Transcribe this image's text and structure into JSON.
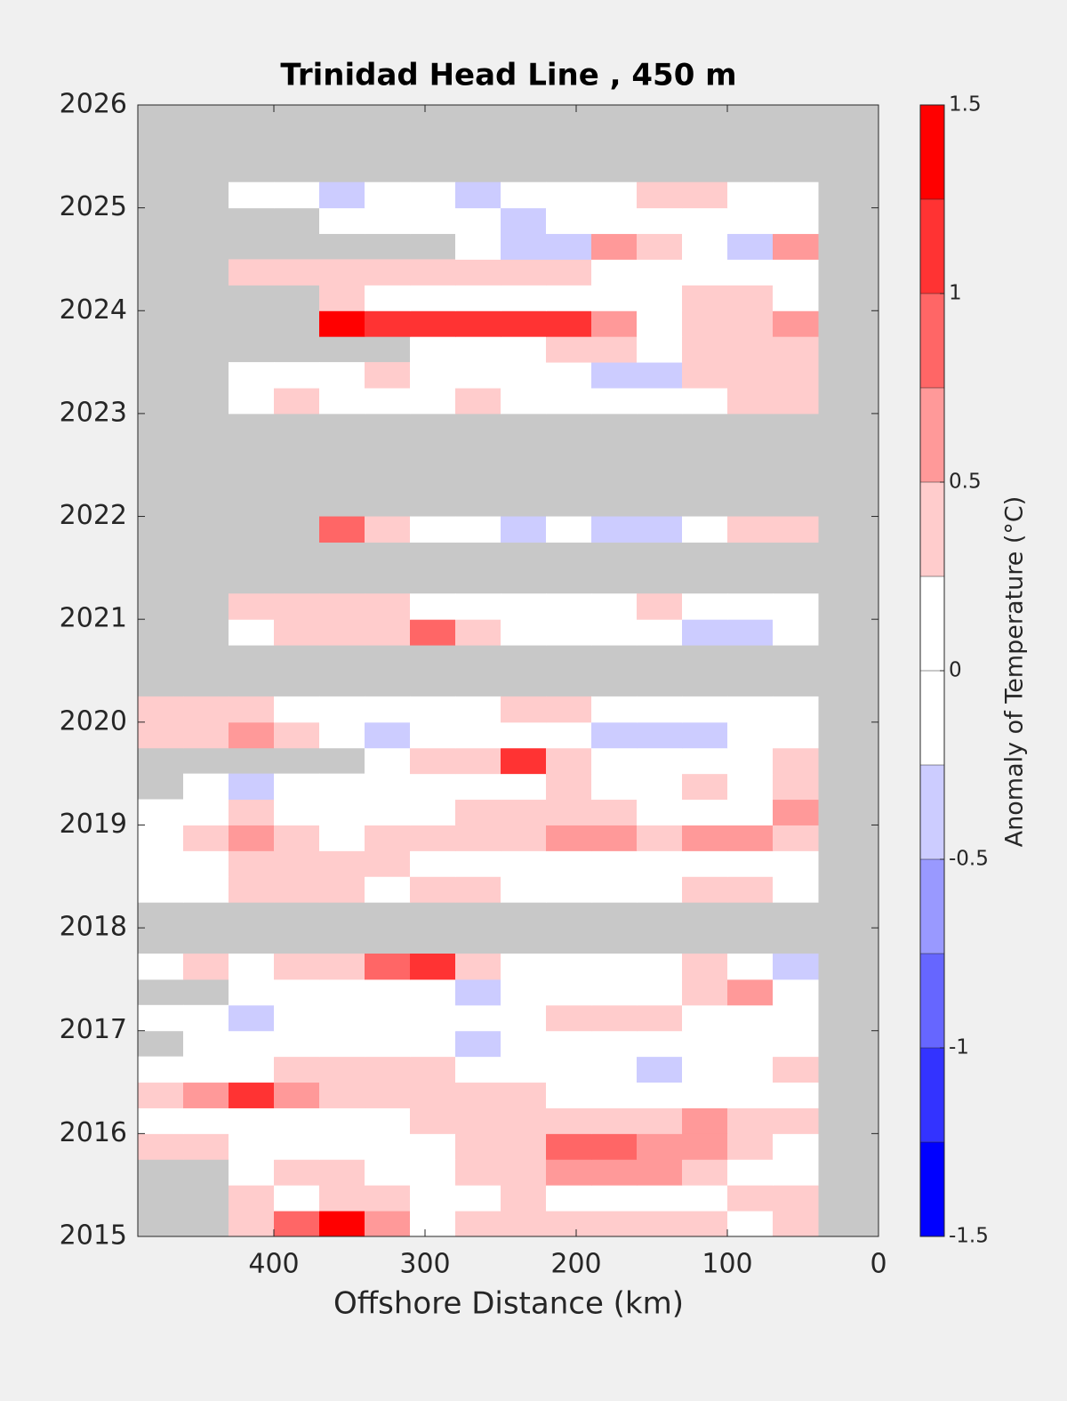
{
  "chart_data": {
    "type": "contour",
    "title": "Trinidad Head Line , 450 m",
    "xlabel": "Offshore Distance (km)",
    "colorbar_label": "Anomaly of Temperature (°C)",
    "xlim": [
      490,
      0
    ],
    "xticks": [
      400,
      300,
      200,
      100,
      0
    ],
    "ylim": [
      2015,
      2026
    ],
    "yticks": [
      2015,
      2016,
      2017,
      2018,
      2019,
      2020,
      2021,
      2022,
      2023,
      2024,
      2025,
      2026
    ],
    "missing_color": "#c8c8c8",
    "levels": [
      -1.5,
      -1.25,
      -1,
      -0.75,
      -0.5,
      -0.25,
      0,
      0.25,
      0.5,
      0.75,
      1,
      1.25,
      1.5
    ],
    "colors": [
      "#0000ff",
      "#3333ff",
      "#6666ff",
      "#9999ff",
      "#ccccff",
      "#ffffff",
      "#ffffff",
      "#ffcccc",
      "#ff9999",
      "#ff6666",
      "#ff3333",
      "#ff0000"
    ],
    "colorbar_ticks": [
      -1.5,
      -1,
      -0.5,
      0,
      0.5,
      1,
      1.5
    ],
    "x": [
      475,
      445,
      415,
      385,
      355,
      325,
      295,
      265,
      235,
      205,
      175,
      145,
      115,
      85,
      55
    ],
    "y": [
      2015.125,
      2015.375,
      2015.625,
      2015.875,
      2016.125,
      2016.375,
      2016.625,
      2016.875,
      2017.125,
      2017.375,
      2017.625,
      2017.875,
      2018.125,
      2018.375,
      2018.625,
      2018.875,
      2019.125,
      2019.375,
      2019.625,
      2019.875,
      2020.125,
      2020.375,
      2020.625,
      2020.875,
      2021.125,
      2021.375,
      2021.625,
      2021.875,
      2022.125,
      2022.375,
      2022.625,
      2022.875,
      2023.125,
      2023.375,
      2023.625,
      2023.875,
      2024.125,
      2024.375,
      2024.625,
      2024.875,
      2025.125
    ],
    "z": [
      [
        null,
        null,
        0.3,
        0.8,
        1.3,
        0.6,
        0,
        0.3,
        0.3,
        0.3,
        0.3,
        0.3,
        0.3,
        0,
        0.3
      ],
      [
        null,
        null,
        0.3,
        0,
        0.3,
        0.3,
        0,
        0,
        0.3,
        0,
        0,
        0,
        0,
        0.3,
        0.4
      ],
      [
        null,
        null,
        0,
        0.3,
        0.3,
        0,
        0,
        0.3,
        0.4,
        0.6,
        0.6,
        0.6,
        0.3,
        0,
        0
      ],
      [
        0.3,
        0.3,
        0,
        0,
        0,
        0,
        0,
        0.3,
        0.4,
        0.8,
        0.8,
        0.7,
        0.6,
        0.3,
        0
      ],
      [
        0,
        0,
        0,
        0,
        0,
        0,
        0.3,
        0.3,
        0.3,
        0.3,
        0.3,
        0.3,
        0.6,
        0.4,
        0.3
      ],
      [
        0.4,
        0.7,
        1.1,
        0.7,
        0.3,
        0.3,
        0.3,
        0.3,
        0.3,
        0,
        0,
        0,
        0,
        0,
        0
      ],
      [
        0,
        0,
        0,
        0.3,
        0.3,
        0.3,
        0.3,
        0,
        0,
        0,
        0,
        -0.3,
        0,
        0,
        0.4
      ],
      [
        null,
        0,
        0,
        0,
        0,
        0,
        0,
        -0.3,
        0,
        0,
        0,
        0,
        0,
        0,
        0
      ],
      [
        0,
        0,
        -0.3,
        0,
        0,
        0,
        0,
        0,
        0,
        0.3,
        0.3,
        0.3,
        0,
        0,
        0
      ],
      [
        null,
        null,
        0,
        0,
        0,
        0,
        0,
        -0.3,
        0,
        0,
        0,
        0,
        0.4,
        0.6,
        0
      ],
      [
        0,
        0.3,
        0,
        0.3,
        0.3,
        0.8,
        1.1,
        0.4,
        0,
        0,
        0,
        0,
        0.3,
        0,
        -0.3
      ],
      [
        null,
        null,
        null,
        null,
        null,
        null,
        null,
        null,
        null,
        null,
        null,
        null,
        null,
        null,
        null
      ],
      [
        null,
        null,
        null,
        null,
        null,
        null,
        null,
        null,
        null,
        null,
        null,
        null,
        null,
        null,
        null
      ],
      [
        0,
        0,
        0.3,
        0.3,
        0.3,
        0,
        0.3,
        0.3,
        0,
        0,
        0,
        0,
        0.3,
        0.3,
        0
      ],
      [
        0,
        0,
        0.3,
        0.3,
        0.3,
        0.3,
        0,
        0,
        0,
        0,
        0,
        0,
        0,
        0,
        0
      ],
      [
        0,
        0.3,
        0.6,
        0.3,
        0,
        0.3,
        0.3,
        0.3,
        0.4,
        0.6,
        0.6,
        0.3,
        0.6,
        0.7,
        0.3
      ],
      [
        0,
        0,
        0.3,
        0,
        0,
        0,
        0,
        0.3,
        0.3,
        0.4,
        0.3,
        0,
        0,
        0,
        0.6
      ],
      [
        null,
        0,
        -0.3,
        0,
        0,
        0,
        0,
        0,
        0,
        0.3,
        0,
        0,
        0.3,
        0,
        0.3
      ],
      [
        null,
        null,
        null,
        null,
        null,
        0,
        0.3,
        0.4,
        1.2,
        0.3,
        0,
        0,
        0,
        0,
        0.3
      ],
      [
        0.3,
        0.3,
        0.6,
        0.3,
        0,
        -0.3,
        0,
        0,
        0,
        0,
        -0.3,
        -0.3,
        -0.3,
        0,
        0
      ],
      [
        0.3,
        0.3,
        0.3,
        0,
        0,
        0,
        0,
        0,
        0.3,
        0.3,
        0,
        0,
        0,
        0,
        0
      ],
      [
        null,
        null,
        null,
        null,
        null,
        null,
        null,
        null,
        null,
        null,
        null,
        null,
        null,
        null,
        null
      ],
      [
        null,
        null,
        null,
        null,
        null,
        null,
        null,
        null,
        null,
        null,
        null,
        null,
        null,
        null,
        null
      ],
      [
        null,
        null,
        0,
        0.3,
        0.3,
        0.4,
        0.8,
        0.4,
        0,
        0,
        0,
        0,
        -0.3,
        -0.3,
        0
      ],
      [
        null,
        null,
        0.3,
        0.3,
        0.3,
        0.3,
        0,
        0,
        0,
        0,
        0,
        0.3,
        0,
        0,
        0
      ],
      [
        null,
        null,
        null,
        null,
        null,
        null,
        null,
        null,
        null,
        null,
        null,
        null,
        null,
        null,
        null
      ],
      [
        null,
        null,
        null,
        null,
        null,
        null,
        null,
        null,
        null,
        null,
        null,
        null,
        null,
        null,
        null
      ],
      [
        null,
        null,
        null,
        null,
        0.8,
        0.3,
        0,
        0,
        -0.3,
        0,
        -0.3,
        -0.3,
        0,
        0.3,
        0.4
      ],
      [
        null,
        null,
        null,
        null,
        null,
        null,
        null,
        null,
        null,
        null,
        null,
        null,
        null,
        null,
        null
      ],
      [
        null,
        null,
        null,
        null,
        null,
        null,
        null,
        null,
        null,
        null,
        null,
        null,
        null,
        null,
        null
      ],
      [
        null,
        null,
        null,
        null,
        null,
        null,
        null,
        null,
        null,
        null,
        null,
        null,
        null,
        null,
        null
      ],
      [
        null,
        null,
        null,
        null,
        null,
        null,
        null,
        null,
        null,
        null,
        null,
        null,
        null,
        null,
        null
      ],
      [
        null,
        null,
        0,
        0.3,
        0,
        0,
        0,
        0.3,
        0,
        0,
        0,
        0,
        0,
        0.3,
        0.3
      ],
      [
        null,
        null,
        0,
        0,
        0,
        0.3,
        0,
        0,
        0,
        0,
        -0.3,
        -0.3,
        0.3,
        0.3,
        0.4
      ],
      [
        null,
        null,
        null,
        null,
        null,
        null,
        0,
        0,
        0,
        0.3,
        0.4,
        0,
        0.3,
        0.4,
        0.3
      ],
      [
        null,
        null,
        null,
        null,
        1.3,
        1.2,
        1.1,
        1.1,
        1.0,
        1.2,
        0.7,
        0,
        0.3,
        0.3,
        0.6
      ],
      [
        null,
        null,
        null,
        null,
        0.3,
        0,
        0,
        0,
        0,
        0,
        0,
        0,
        0.3,
        0.3,
        0
      ],
      [
        null,
        null,
        0.3,
        0.3,
        0.3,
        0.3,
        0.3,
        0.3,
        0.3,
        0.3,
        0,
        0,
        0,
        0,
        0
      ],
      [
        null,
        null,
        null,
        null,
        null,
        null,
        null,
        0,
        -0.3,
        -0.3,
        0.6,
        0.3,
        0,
        -0.3,
        0.7
      ],
      [
        null,
        null,
        null,
        null,
        0,
        0,
        0,
        0,
        -0.3,
        0,
        0,
        0,
        0,
        0,
        0
      ],
      [
        null,
        null,
        0,
        0,
        -0.3,
        0,
        0,
        -0.3,
        0,
        0,
        0,
        0.3,
        0.4,
        0,
        0
      ]
    ]
  }
}
